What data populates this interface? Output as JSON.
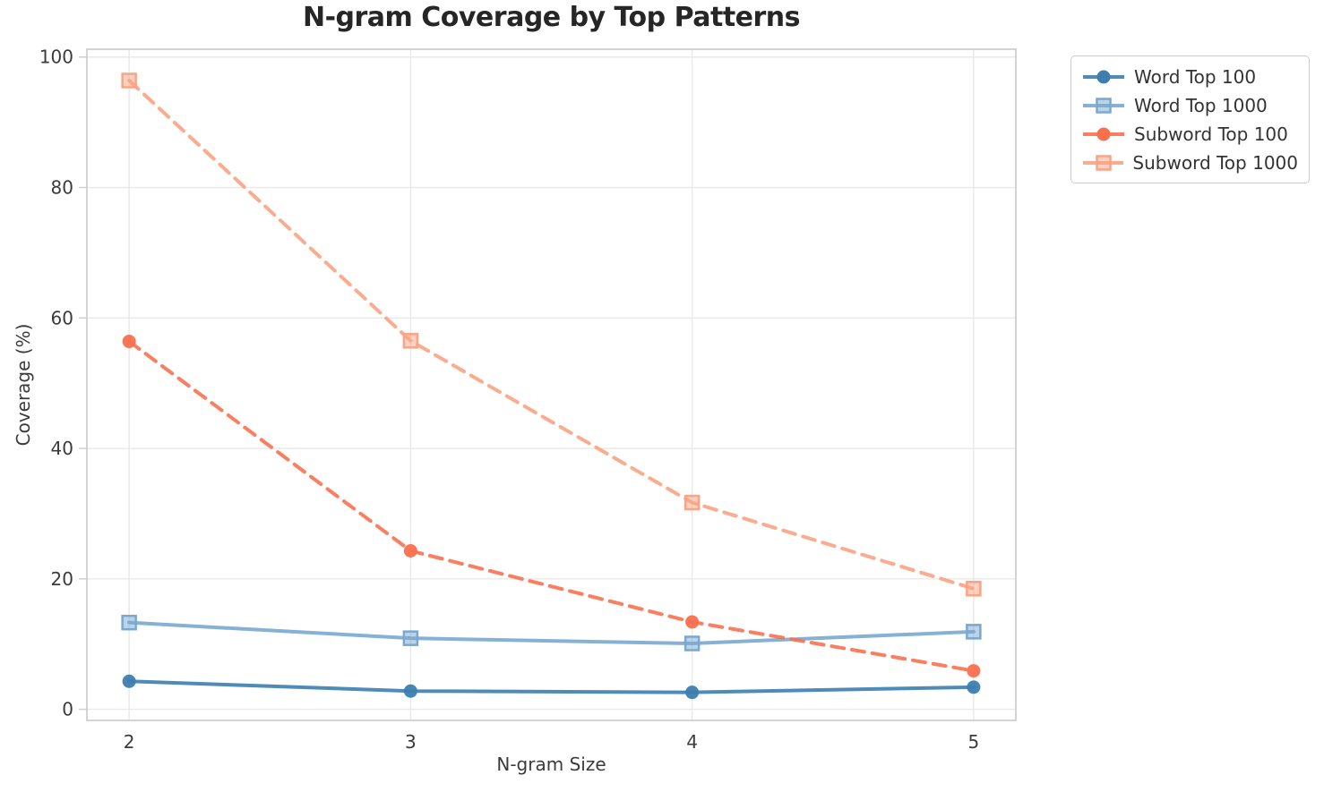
{
  "chart_data": {
    "type": "line",
    "title": "N-gram Coverage by Top Patterns",
    "xlabel": "N-gram Size",
    "ylabel": "Coverage (%)",
    "x": [
      2,
      3,
      4,
      5
    ],
    "xtick_labels": [
      "2",
      "3",
      "4",
      "5"
    ],
    "yticks": [
      0,
      20,
      40,
      60,
      80,
      100
    ],
    "xlim": [
      1.85,
      5.15
    ],
    "ylim": [
      -1.7,
      101.2
    ],
    "grid": true,
    "legend_position": "upper-right-outside",
    "axis_style": {
      "grid_color": "#e9e9e9",
      "spine_color": "#cfcfcf",
      "tick_label_color": "#3b3b3b",
      "title_color": "#262626"
    },
    "series": [
      {
        "name": "Word Top 100",
        "marker": "circle",
        "line_style": "solid",
        "color": "#3c7eb0",
        "values": [
          4.3,
          2.8,
          2.6,
          3.4
        ]
      },
      {
        "name": "Word Top 1000",
        "marker": "square",
        "line_style": "solid",
        "color": "#79a8d0",
        "values": [
          13.3,
          10.9,
          10.1,
          11.9
        ]
      },
      {
        "name": "Subword Top 100",
        "marker": "circle",
        "line_style": "dashed",
        "color": "#f9704e",
        "values": [
          56.4,
          24.3,
          13.4,
          5.9
        ]
      },
      {
        "name": "Subword Top 1000",
        "marker": "square",
        "line_style": "dashed",
        "color": "#fba383",
        "values": [
          96.4,
          56.5,
          31.7,
          18.5
        ]
      }
    ]
  }
}
